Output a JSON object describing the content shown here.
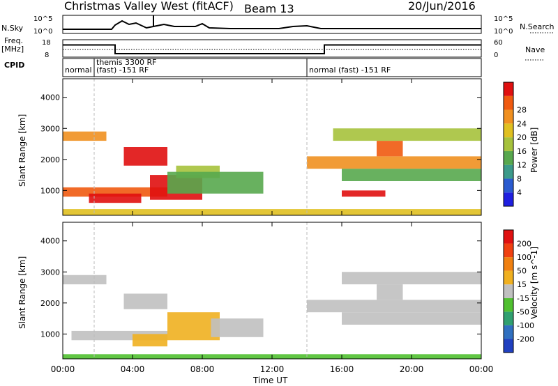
{
  "header": {
    "title": "Christmas Valley West (fitACF)",
    "beam": "Beam 13",
    "date": "20/Jun/2016"
  },
  "left_labels": {
    "nsky": "N.Sky",
    "freq_1": "Freq.",
    "freq_2": "[MHz]",
    "cpid": "CPID"
  },
  "right_labels": {
    "nsearch": "N.Search",
    "nave": "Nave"
  },
  "nsky_axis": {
    "top": "10^5",
    "bottom": "10^0"
  },
  "nsearch_axis": {
    "top": "10^5",
    "bottom": "10^0"
  },
  "freq_axis": {
    "top": "18",
    "bottom": "8"
  },
  "nave_axis": {
    "top": "60",
    "bottom": "0"
  },
  "cpid_segments": [
    {
      "label": "normal",
      "start_h": 0.0,
      "end_h": 1.8
    },
    {
      "label": "themis 3300 RF",
      "label2": "(fast) -151 RF",
      "start_h": 1.8,
      "end_h": 14.0
    },
    {
      "label": "normal (fast) -151 RF",
      "start_h": 14.0,
      "end_h": 24.0
    }
  ],
  "power_colorbar": {
    "label": "Power [dB]",
    "ticks": [
      "4",
      "8",
      "12",
      "16",
      "20",
      "24",
      "28"
    ],
    "colors": [
      "#1f1fe0",
      "#2a5bd0",
      "#3c9a8a",
      "#58a84e",
      "#a6c23c",
      "#e0c020",
      "#f09020",
      "#f05a10",
      "#e01010"
    ]
  },
  "velocity_colorbar": {
    "label": "Velocity [m s^-1]",
    "ticks": [
      "200",
      "100",
      "50",
      "15",
      "-15",
      "-50",
      "-100",
      "-200"
    ],
    "colors": [
      "#2040c0",
      "#3070c0",
      "#30a070",
      "#50c030",
      "#c0c0c0",
      "#f0b020",
      "#f08010",
      "#f04010",
      "#e01010"
    ]
  },
  "chart_data": [
    {
      "type": "heatmap",
      "name": "power",
      "ylabel": "Slant Range [km]",
      "yticks": [
        "1000",
        "2000",
        "3000",
        "4000"
      ],
      "ylim": [
        200,
        4600
      ],
      "xlim": [
        0,
        24
      ],
      "xticks": [
        "00:00",
        "04:00",
        "08:00",
        "12:00",
        "16:00",
        "20:00",
        "00:00"
      ],
      "regions": [
        {
          "t0": 0.0,
          "t1": 2.5,
          "r0": 2600,
          "r1": 2900,
          "level": 6
        },
        {
          "t0": 0.0,
          "t1": 6.0,
          "r0": 800,
          "r1": 1100,
          "level": 7
        },
        {
          "t0": 1.5,
          "t1": 4.5,
          "r0": 600,
          "r1": 900,
          "level": 8
        },
        {
          "t0": 3.5,
          "t1": 6.0,
          "r0": 1800,
          "r1": 2400,
          "level": 8
        },
        {
          "t0": 5.0,
          "t1": 8.0,
          "r0": 700,
          "r1": 1500,
          "level": 8
        },
        {
          "t0": 6.5,
          "t1": 9.0,
          "r0": 1400,
          "r1": 1800,
          "level": 4
        },
        {
          "t0": 6.0,
          "t1": 11.5,
          "r0": 900,
          "r1": 1600,
          "level": 3
        },
        {
          "t0": 14.0,
          "t1": 24.0,
          "r0": 1700,
          "r1": 2100,
          "level": 6
        },
        {
          "t0": 16.0,
          "t1": 24.0,
          "r0": 1300,
          "r1": 1700,
          "level": 3
        },
        {
          "t0": 16.0,
          "t1": 18.5,
          "r0": 800,
          "r1": 1000,
          "level": 8
        },
        {
          "t0": 18.0,
          "t1": 19.5,
          "r0": 2100,
          "r1": 2600,
          "level": 7
        },
        {
          "t0": 15.5,
          "t1": 24.0,
          "r0": 2600,
          "r1": 3000,
          "level": 4
        },
        {
          "t0": 0.0,
          "t1": 24.0,
          "r0": 200,
          "r1": 400,
          "level": 5
        }
      ]
    },
    {
      "type": "heatmap",
      "name": "velocity",
      "ylabel": "Slant Range [km]",
      "xlabel": "Time UT",
      "yticks": [
        "1000",
        "2000",
        "3000",
        "4000"
      ],
      "ylim": [
        200,
        4600
      ],
      "xlim": [
        0,
        24
      ],
      "xticks": [
        "00:00",
        "04:00",
        "08:00",
        "12:00",
        "16:00",
        "20:00",
        "00:00"
      ],
      "regions": [
        {
          "t0": 0.0,
          "t1": 2.5,
          "r0": 2600,
          "r1": 2900,
          "level": 4
        },
        {
          "t0": 0.5,
          "t1": 6.0,
          "r0": 800,
          "r1": 1100,
          "level": 4
        },
        {
          "t0": 3.5,
          "t1": 6.0,
          "r0": 1800,
          "r1": 2300,
          "level": 4
        },
        {
          "t0": 4.0,
          "t1": 6.0,
          "r0": 600,
          "r1": 1000,
          "level": 5
        },
        {
          "t0": 6.0,
          "t1": 9.0,
          "r0": 800,
          "r1": 1700,
          "level": 5
        },
        {
          "t0": 8.5,
          "t1": 11.5,
          "r0": 900,
          "r1": 1500,
          "level": 4
        },
        {
          "t0": 14.0,
          "t1": 24.0,
          "r0": 1700,
          "r1": 2100,
          "level": 4
        },
        {
          "t0": 16.0,
          "t1": 24.0,
          "r0": 1300,
          "r1": 1700,
          "level": 4
        },
        {
          "t0": 18.0,
          "t1": 19.5,
          "r0": 2100,
          "r1": 2600,
          "level": 4
        },
        {
          "t0": 16.0,
          "t1": 24.0,
          "r0": 2600,
          "r1": 3000,
          "level": 4
        },
        {
          "t0": 0.0,
          "t1": 24.0,
          "r0": 200,
          "r1": 350,
          "level": 3
        }
      ]
    }
  ],
  "freq_step": [
    {
      "t0": 0.0,
      "t1": 3.0,
      "v": 15
    },
    {
      "t0": 3.0,
      "t1": 15.0,
      "v": 10
    },
    {
      "t0": 15.0,
      "t1": 24.0,
      "v": 15
    }
  ]
}
